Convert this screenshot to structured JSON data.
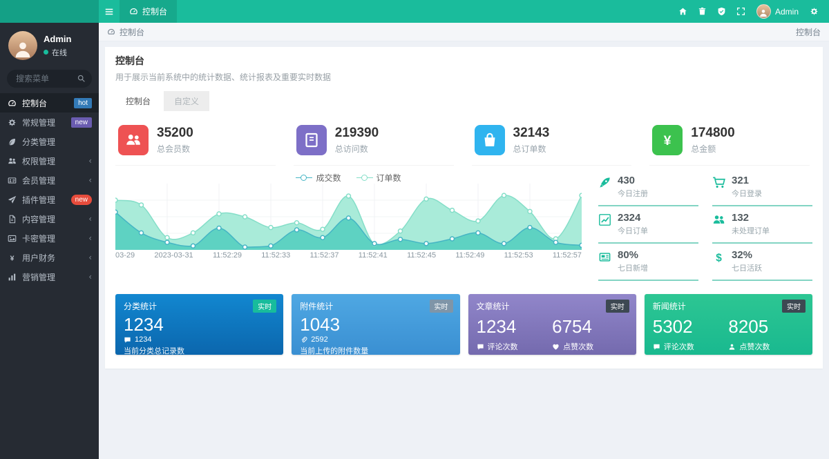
{
  "navbar": {
    "menu_icon": "hamburger",
    "active_tab": {
      "icon": "dashboard",
      "label": "控制台"
    },
    "right_icons": [
      {
        "name": "home",
        "icon": "home"
      },
      {
        "name": "clear-cache",
        "icon": "trash"
      },
      {
        "name": "check-update",
        "icon": "shield-check"
      },
      {
        "name": "fullscreen",
        "icon": "expand"
      }
    ],
    "user_name": "Admin",
    "settings_icon": "gear",
    "colors": {
      "bar": "#1abc9c",
      "logo_bg": "#14a086",
      "active_tab_bg": "#16a98c"
    }
  },
  "sidebar": {
    "user": {
      "name": "Admin",
      "status": "在线",
      "status_color": "#18bc9c"
    },
    "search_placeholder": "搜索菜单",
    "search_icon": "search",
    "menu": [
      {
        "label": "控制台",
        "icon": "dashboard",
        "badge": "hot",
        "badge_color": "#337ab7",
        "active": true
      },
      {
        "label": "常规管理",
        "icon": "cogs",
        "badge": "new",
        "badge_color": "#6a5cb0"
      },
      {
        "label": "分类管理",
        "icon": "leaf"
      },
      {
        "label": "权限管理",
        "icon": "users",
        "chevron": "‹"
      },
      {
        "label": "会员管理",
        "icon": "id-card",
        "chevron": "‹"
      },
      {
        "label": "插件管理",
        "icon": "paper-plane",
        "badge": "new",
        "badge_color": "#e74c3c",
        "badge_pill": true
      },
      {
        "label": "内容管理",
        "icon": "file",
        "chevron": "‹"
      },
      {
        "label": "卡密管理",
        "icon": "image",
        "chevron": "‹"
      },
      {
        "label": "用户财务",
        "icon": "yen",
        "chevron": "‹"
      },
      {
        "label": "营销管理",
        "icon": "bar-chart",
        "chevron": "‹"
      }
    ]
  },
  "breadcrumb": {
    "icon": "dashboard",
    "left": "控制台",
    "right": "控制台"
  },
  "panel": {
    "title": "控制台",
    "description": "用于展示当前系统中的统计数据、统计报表及重要实时数据",
    "tabs": [
      {
        "label": "控制台",
        "active": true
      },
      {
        "label": "自定义",
        "active": false
      }
    ]
  },
  "stat_cards": [
    {
      "value": "35200",
      "label": "总会员数",
      "icon": "users",
      "color": "#ee5253"
    },
    {
      "value": "219390",
      "label": "总访问数",
      "icon": "book",
      "color": "#7d6fc7"
    },
    {
      "value": "32143",
      "label": "总订单数",
      "icon": "shopping-bag",
      "color": "#2fb4ef"
    },
    {
      "value": "174800",
      "label": "总金额",
      "icon": "yen",
      "color": "#3cc24e"
    }
  ],
  "quick_stats": [
    {
      "value": "430",
      "label": "今日注册",
      "icon": "rocket"
    },
    {
      "value": "321",
      "label": "今日登录",
      "icon": "cart"
    },
    {
      "value": "2324",
      "label": "今日订单",
      "icon": "line-chart"
    },
    {
      "value": "132",
      "label": "未处理订单",
      "icon": "users"
    },
    {
      "value": "80%",
      "label": "七日新增",
      "icon": "newspaper"
    },
    {
      "value": "32%",
      "label": "七日活跃",
      "icon": "dollar"
    }
  ],
  "quick_stats_accent": "#18bc9c",
  "summary_cards": [
    {
      "title": "分类统计",
      "badge": "实时",
      "badge_color": "#18bc9c",
      "value": "1234",
      "sub_icon": "comment",
      "sub_value": "1234",
      "desc": "当前分类总记录数",
      "bg_from": "#1287d0",
      "bg_to": "#0b66ad"
    },
    {
      "title": "附件统计",
      "badge": "实时",
      "badge_color": "#7f95a8",
      "value": "1043",
      "sub_icon": "paperclip",
      "sub_value": "2592",
      "desc": "当前上传的附件数量",
      "bg_from": "#4fa8e3",
      "bg_to": "#3a8fd2"
    },
    {
      "title": "文章统计",
      "badge": "实时",
      "badge_color": "#3d4852",
      "cols": [
        {
          "value": "1234",
          "label": "评论次数",
          "icon": "comment"
        },
        {
          "value": "6754",
          "label": "点赞次数",
          "icon": "heart"
        }
      ],
      "bg_from": "#9186ca",
      "bg_to": "#746aae"
    },
    {
      "title": "新闻统计",
      "badge": "实时",
      "badge_color": "#3d4852",
      "cols": [
        {
          "value": "5302",
          "label": "评论次数",
          "icon": "comment"
        },
        {
          "value": "8205",
          "label": "点赞次数",
          "icon": "user"
        }
      ],
      "bg_from": "#2dc693",
      "bg_to": "#19b98f"
    }
  ],
  "chart_data": {
    "type": "area",
    "title": "",
    "legend_position": "top",
    "grid": true,
    "ylim": [
      0,
      100
    ],
    "x_labels": [
      "03-29",
      "2023-03-31",
      "11:52:29",
      "11:52:33",
      "11:52:37",
      "11:52:41",
      "11:52:45",
      "11:52:49",
      "11:52:53",
      "11:52:57"
    ],
    "series": [
      {
        "name": "成交数",
        "line_color": "#45b5c4",
        "fill_color": "#5ed2c2",
        "values": [
          59,
          24,
          8,
          2,
          32,
          0,
          2,
          29,
          16,
          49,
          6,
          13,
          6,
          14,
          24,
          6,
          33,
          8,
          3
        ]
      },
      {
        "name": "订单数",
        "line_color": "#84dec8",
        "fill_color": "#a9ebd9",
        "values": [
          79,
          71,
          16,
          24,
          56,
          51,
          33,
          41,
          30,
          86,
          5,
          27,
          81,
          62,
          44,
          87,
          60,
          14,
          87
        ]
      }
    ]
  }
}
